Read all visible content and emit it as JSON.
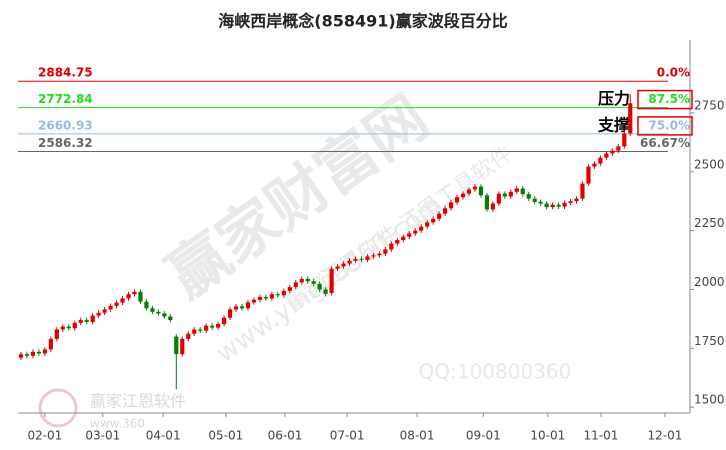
{
  "chart_data": {
    "type": "candlestick",
    "title": "海峡西岸概念(858491)赢家波段百分比",
    "up_color": "#e00000",
    "down_color": "#008000",
    "xlim": [
      -0.5,
      112
    ],
    "ylim": [
      1475,
      3060
    ],
    "xticks": [
      {
        "value": 4.0,
        "label": "02-01"
      },
      {
        "value": 13.7,
        "label": "03-01"
      },
      {
        "value": 23.8,
        "label": "04-01"
      },
      {
        "value": 34.3,
        "label": "05-01"
      },
      {
        "value": 44.2,
        "label": "06-01"
      },
      {
        "value": 54.6,
        "label": "07-01"
      },
      {
        "value": 66.3,
        "label": "08-01"
      },
      {
        "value": 77.4,
        "label": "09-01"
      },
      {
        "value": 88.2,
        "label": "10-01"
      },
      {
        "value": 97.1,
        "label": "11-01"
      },
      {
        "value": 107.8,
        "label": "12-01"
      }
    ],
    "yticks": [
      1500,
      1750,
      2000,
      2250,
      2500,
      2750
    ],
    "open": [
      1710,
      1725,
      1718,
      1735,
      1728,
      1745,
      1790,
      1830,
      1842,
      1835,
      1858,
      1870,
      1862,
      1889,
      1901,
      1915,
      1930,
      1944,
      1962,
      1980,
      1990,
      1948,
      1920,
      1905,
      1898,
      1885,
      1800,
      1725,
      1790,
      1812,
      1830,
      1825,
      1846,
      1838,
      1853,
      1880,
      1915,
      1928,
      1920,
      1945,
      1956,
      1968,
      1962,
      1980,
      1975,
      1994,
      2010,
      2030,
      2045,
      2035,
      2024,
      2000,
      1985,
      2088,
      2098,
      2110,
      2122,
      2130,
      2126,
      2140,
      2145,
      2152,
      2170,
      2195,
      2210,
      2224,
      2238,
      2250,
      2267,
      2285,
      2300,
      2322,
      2345,
      2370,
      2392,
      2407,
      2425,
      2437,
      2400,
      2340,
      2365,
      2407,
      2395,
      2415,
      2429,
      2405,
      2386,
      2372,
      2365,
      2350,
      2360,
      2352,
      2368,
      2375,
      2386,
      2450,
      2522,
      2535,
      2560,
      2578,
      2590,
      2608,
      2663
    ],
    "high": [
      1735,
      1735,
      1745,
      1745,
      1755,
      1800,
      1840,
      1852,
      1852,
      1868,
      1880,
      1880,
      1899,
      1911,
      1925,
      1940,
      1954,
      1972,
      1990,
      2000,
      2000,
      1958,
      1930,
      1915,
      1908,
      1895,
      1810,
      1800,
      1822,
      1840,
      1840,
      1856,
      1856,
      1863,
      1890,
      1925,
      1938,
      1938,
      1955,
      1966,
      1978,
      1978,
      1990,
      1990,
      2004,
      2020,
      2040,
      2055,
      2055,
      2045,
      2034,
      2010,
      2098,
      2108,
      2120,
      2132,
      2140,
      2140,
      2150,
      2155,
      2162,
      2180,
      2205,
      2220,
      2234,
      2248,
      2260,
      2277,
      2295,
      2310,
      2332,
      2355,
      2380,
      2402,
      2417,
      2435,
      2447,
      2447,
      2410,
      2375,
      2417,
      2417,
      2425,
      2439,
      2439,
      2415,
      2396,
      2382,
      2375,
      2370,
      2370,
      2378,
      2385,
      2396,
      2460,
      2532,
      2545,
      2570,
      2588,
      2600,
      2618,
      2673,
      2830
    ],
    "low": [
      1700,
      1708,
      1708,
      1718,
      1718,
      1735,
      1780,
      1820,
      1825,
      1825,
      1848,
      1852,
      1852,
      1879,
      1891,
      1905,
      1920,
      1934,
      1952,
      1970,
      1938,
      1910,
      1895,
      1888,
      1875,
      1860,
      1576,
      1715,
      1780,
      1802,
      1815,
      1815,
      1828,
      1828,
      1843,
      1870,
      1905,
      1910,
      1910,
      1935,
      1946,
      1952,
      1952,
      1965,
      1965,
      1984,
      2000,
      2020,
      2025,
      2014,
      1990,
      1971,
      1975,
      2078,
      2088,
      2100,
      2112,
      2116,
      2116,
      2130,
      2135,
      2142,
      2160,
      2185,
      2200,
      2214,
      2228,
      2240,
      2257,
      2275,
      2290,
      2312,
      2335,
      2360,
      2382,
      2397,
      2415,
      2390,
      2330,
      2330,
      2355,
      2385,
      2385,
      2405,
      2395,
      2376,
      2362,
      2355,
      2340,
      2340,
      2342,
      2342,
      2358,
      2365,
      2376,
      2440,
      2512,
      2525,
      2550,
      2568,
      2580,
      2598,
      2653
    ],
    "close": [
      1725,
      1718,
      1735,
      1728,
      1745,
      1790,
      1830,
      1842,
      1835,
      1858,
      1870,
      1862,
      1889,
      1901,
      1915,
      1930,
      1944,
      1962,
      1980,
      1990,
      1948,
      1920,
      1905,
      1898,
      1885,
      1870,
      1725,
      1790,
      1812,
      1830,
      1825,
      1846,
      1838,
      1853,
      1880,
      1915,
      1928,
      1920,
      1945,
      1956,
      1968,
      1962,
      1980,
      1975,
      1994,
      2010,
      2030,
      2045,
      2035,
      2024,
      2000,
      1981,
      2088,
      2098,
      2110,
      2122,
      2130,
      2126,
      2140,
      2145,
      2152,
      2170,
      2195,
      2210,
      2224,
      2238,
      2250,
      2267,
      2285,
      2300,
      2322,
      2345,
      2370,
      2392,
      2407,
      2425,
      2437,
      2400,
      2340,
      2365,
      2407,
      2395,
      2415,
      2429,
      2405,
      2386,
      2372,
      2365,
      2350,
      2360,
      2352,
      2368,
      2375,
      2386,
      2450,
      2522,
      2535,
      2560,
      2578,
      2590,
      2608,
      2663,
      2791
    ],
    "levels": [
      {
        "value": 2884.75,
        "label": "0.0%",
        "color": "#e00000"
      },
      {
        "value": 2772.84,
        "label": "87.5%",
        "color": "#22dd22",
        "boxed": true
      },
      {
        "value": 2660.93,
        "label": "75.0%",
        "color": "#99bbdd",
        "boxed": true
      },
      {
        "value": 2586.32,
        "label": "66.67%",
        "color": "#666666"
      }
    ],
    "box_color": "#e00000",
    "annotations": [
      "压力",
      "支撑"
    ],
    "watermarks": [
      "赢家财富网",
      "赢家江恩软件 江恩工具软件",
      "www.yingjia360.com",
      "QQ:100800360",
      "赢家江恩软件",
      "www.360"
    ]
  }
}
